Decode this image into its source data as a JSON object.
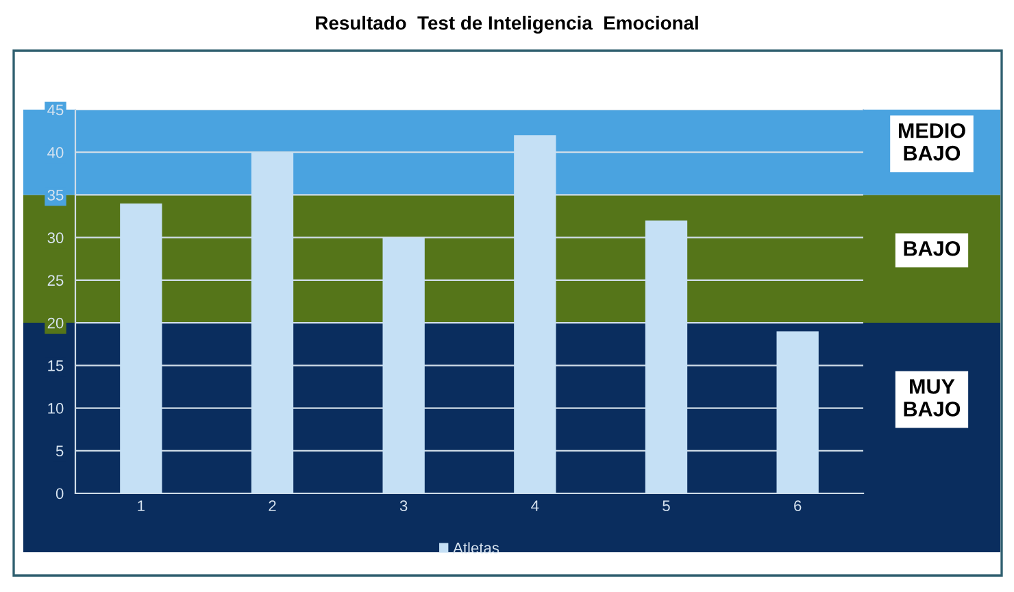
{
  "chart_data": {
    "type": "bar",
    "title": "Resultado  Test de Inteligencia  Emocional",
    "categories": [
      "1",
      "2",
      "3",
      "4",
      "5",
      "6"
    ],
    "series": [
      {
        "name": "Atletas",
        "color": "#c5e0f5",
        "values": [
          34,
          40,
          30,
          42,
          32,
          19
        ]
      }
    ],
    "ylim": [
      0,
      45
    ],
    "yticks": [
      0,
      5,
      10,
      15,
      20,
      25,
      30,
      35,
      40,
      45
    ],
    "grid": "y",
    "legend": "bottom",
    "bands": [
      {
        "axis": "y",
        "from": 0,
        "to": 20,
        "label": "MUY\nBAJO",
        "color": "#0a2d5e"
      },
      {
        "axis": "y",
        "from": 20,
        "to": 35,
        "label": "BAJO",
        "color": "#557519"
      },
      {
        "axis": "y",
        "from": 35,
        "to": 45,
        "label": "MEDIO\nBAJO",
        "color": "#4aa3e0"
      }
    ]
  }
}
